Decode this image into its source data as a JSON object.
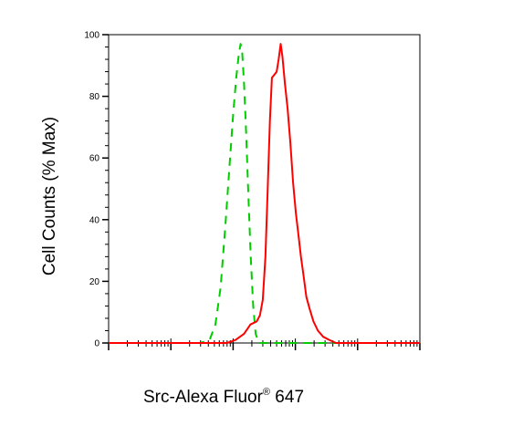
{
  "chart_data": {
    "type": "line",
    "title": "",
    "ylabel": "Cell Counts (% Max)",
    "xlabel": {
      "text": "Src-Alexa Fluor",
      "superscript": "®",
      "suffix": " 647"
    },
    "x_scale": "log",
    "xlim": [
      1,
      100000
    ],
    "ylim": [
      0,
      100
    ],
    "yticks": [
      "0",
      "20",
      "40",
      "60",
      "80",
      "100"
    ],
    "grid": false,
    "legend": "none",
    "series": [
      {
        "color": "#00cc00",
        "style": "dashed",
        "points": [
          [
            1,
            0
          ],
          [
            30,
            0
          ],
          [
            42,
            1
          ],
          [
            52,
            6
          ],
          [
            63,
            18
          ],
          [
            75,
            38
          ],
          [
            88,
            58
          ],
          [
            100,
            74
          ],
          [
            112,
            86
          ],
          [
            124,
            94
          ],
          [
            132,
            97
          ],
          [
            140,
            94
          ],
          [
            150,
            84
          ],
          [
            162,
            68
          ],
          [
            176,
            48
          ],
          [
            192,
            28
          ],
          [
            210,
            12
          ],
          [
            230,
            3
          ],
          [
            260,
            0
          ],
          [
            100000,
            0
          ]
        ]
      },
      {
        "color": "#ff0000",
        "style": "solid",
        "points": [
          [
            1,
            0
          ],
          [
            40,
            0
          ],
          [
            80,
            0
          ],
          [
            110,
            1
          ],
          [
            150,
            3
          ],
          [
            190,
            6
          ],
          [
            240,
            7
          ],
          [
            270,
            9
          ],
          [
            300,
            14
          ],
          [
            330,
            28
          ],
          [
            360,
            50
          ],
          [
            390,
            72
          ],
          [
            420,
            86
          ],
          [
            460,
            87
          ],
          [
            500,
            88
          ],
          [
            540,
            92
          ],
          [
            580,
            97
          ],
          [
            620,
            93
          ],
          [
            680,
            84
          ],
          [
            750,
            76
          ],
          [
            830,
            65
          ],
          [
            920,
            52
          ],
          [
            1020,
            42
          ],
          [
            1120,
            35
          ],
          [
            1230,
            28
          ],
          [
            1350,
            22
          ],
          [
            1500,
            15
          ],
          [
            1700,
            11
          ],
          [
            1950,
            7
          ],
          [
            2300,
            4
          ],
          [
            2800,
            2
          ],
          [
            3500,
            1
          ],
          [
            4500,
            0
          ],
          [
            100000,
            0
          ]
        ]
      }
    ]
  }
}
